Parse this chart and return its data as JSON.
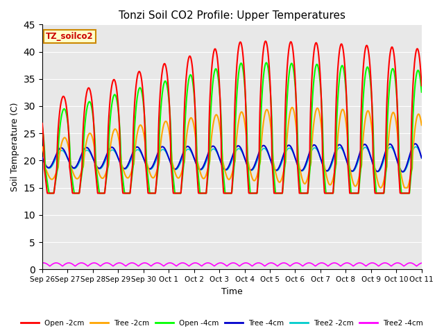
{
  "title": "Tonzi Soil CO2 Profile: Upper Temperatures",
  "xlabel": "Time",
  "ylabel": "Soil Temperature (C)",
  "ylim": [
    0,
    45
  ],
  "yticks": [
    0,
    5,
    10,
    15,
    20,
    25,
    30,
    35,
    40,
    45
  ],
  "series": [
    {
      "label": "Open -2cm",
      "color": "#ff0000"
    },
    {
      "label": "Tree -2cm",
      "color": "#ffa500"
    },
    {
      "label": "Open -4cm",
      "color": "#00ff00"
    },
    {
      "label": "Tree -4cm",
      "color": "#0000cc"
    },
    {
      "label": "Tree2 -2cm",
      "color": "#00cccc"
    },
    {
      "label": "Tree2 -4cm",
      "color": "#ff00ff"
    }
  ],
  "xtick_labels": [
    "Sep 26",
    "Sep 27",
    "Sep 28",
    "Sep 29",
    "Sep 30",
    "Oct 1",
    "Oct 2",
    "Oct 3",
    "Oct 4",
    "Oct 5",
    "Oct 6",
    "Oct 7",
    "Oct 8",
    "Oct 9",
    "Oct 10",
    "Oct 11"
  ],
  "legend_box_color": "#ffffcc",
  "legend_box_text": "TZ_soilco2",
  "plot_bg_color": "#e8e8e8",
  "n_points": 1500
}
